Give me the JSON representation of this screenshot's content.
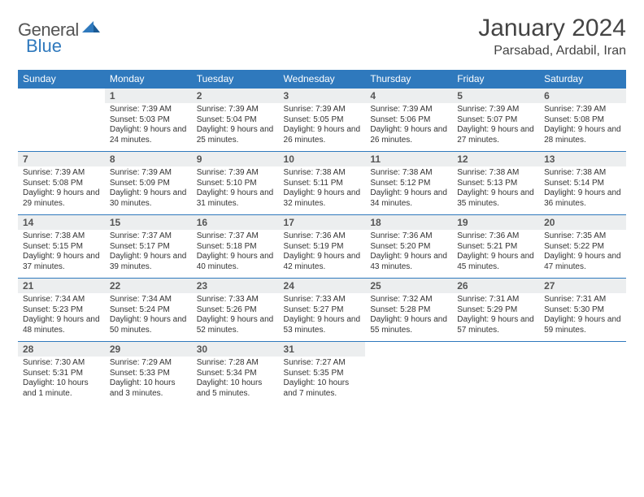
{
  "brand": {
    "name1": "General",
    "name2": "Blue"
  },
  "title": "January 2024",
  "location": "Parsabad, Ardabil, Iran",
  "colors": {
    "accent": "#2f79bd",
    "headerRow": "#eceeef",
    "text": "#333333",
    "bg": "#ffffff"
  },
  "fonts": {
    "title_size": 30,
    "location_size": 16,
    "dayhead_size": 12,
    "body_size": 10
  },
  "dayHeaders": [
    "Sunday",
    "Monday",
    "Tuesday",
    "Wednesday",
    "Thursday",
    "Friday",
    "Saturday"
  ],
  "grid": {
    "rows": 5,
    "cols": 7,
    "first_weekday_offset": 1,
    "days_in_month": 31
  },
  "days": [
    {
      "n": 1,
      "sunrise": "7:39 AM",
      "sunset": "5:03 PM",
      "daylight": "9 hours and 24 minutes."
    },
    {
      "n": 2,
      "sunrise": "7:39 AM",
      "sunset": "5:04 PM",
      "daylight": "9 hours and 25 minutes."
    },
    {
      "n": 3,
      "sunrise": "7:39 AM",
      "sunset": "5:05 PM",
      "daylight": "9 hours and 26 minutes."
    },
    {
      "n": 4,
      "sunrise": "7:39 AM",
      "sunset": "5:06 PM",
      "daylight": "9 hours and 26 minutes."
    },
    {
      "n": 5,
      "sunrise": "7:39 AM",
      "sunset": "5:07 PM",
      "daylight": "9 hours and 27 minutes."
    },
    {
      "n": 6,
      "sunrise": "7:39 AM",
      "sunset": "5:08 PM",
      "daylight": "9 hours and 28 minutes."
    },
    {
      "n": 7,
      "sunrise": "7:39 AM",
      "sunset": "5:08 PM",
      "daylight": "9 hours and 29 minutes."
    },
    {
      "n": 8,
      "sunrise": "7:39 AM",
      "sunset": "5:09 PM",
      "daylight": "9 hours and 30 minutes."
    },
    {
      "n": 9,
      "sunrise": "7:39 AM",
      "sunset": "5:10 PM",
      "daylight": "9 hours and 31 minutes."
    },
    {
      "n": 10,
      "sunrise": "7:38 AM",
      "sunset": "5:11 PM",
      "daylight": "9 hours and 32 minutes."
    },
    {
      "n": 11,
      "sunrise": "7:38 AM",
      "sunset": "5:12 PM",
      "daylight": "9 hours and 34 minutes."
    },
    {
      "n": 12,
      "sunrise": "7:38 AM",
      "sunset": "5:13 PM",
      "daylight": "9 hours and 35 minutes."
    },
    {
      "n": 13,
      "sunrise": "7:38 AM",
      "sunset": "5:14 PM",
      "daylight": "9 hours and 36 minutes."
    },
    {
      "n": 14,
      "sunrise": "7:38 AM",
      "sunset": "5:15 PM",
      "daylight": "9 hours and 37 minutes."
    },
    {
      "n": 15,
      "sunrise": "7:37 AM",
      "sunset": "5:17 PM",
      "daylight": "9 hours and 39 minutes."
    },
    {
      "n": 16,
      "sunrise": "7:37 AM",
      "sunset": "5:18 PM",
      "daylight": "9 hours and 40 minutes."
    },
    {
      "n": 17,
      "sunrise": "7:36 AM",
      "sunset": "5:19 PM",
      "daylight": "9 hours and 42 minutes."
    },
    {
      "n": 18,
      "sunrise": "7:36 AM",
      "sunset": "5:20 PM",
      "daylight": "9 hours and 43 minutes."
    },
    {
      "n": 19,
      "sunrise": "7:36 AM",
      "sunset": "5:21 PM",
      "daylight": "9 hours and 45 minutes."
    },
    {
      "n": 20,
      "sunrise": "7:35 AM",
      "sunset": "5:22 PM",
      "daylight": "9 hours and 47 minutes."
    },
    {
      "n": 21,
      "sunrise": "7:34 AM",
      "sunset": "5:23 PM",
      "daylight": "9 hours and 48 minutes."
    },
    {
      "n": 22,
      "sunrise": "7:34 AM",
      "sunset": "5:24 PM",
      "daylight": "9 hours and 50 minutes."
    },
    {
      "n": 23,
      "sunrise": "7:33 AM",
      "sunset": "5:26 PM",
      "daylight": "9 hours and 52 minutes."
    },
    {
      "n": 24,
      "sunrise": "7:33 AM",
      "sunset": "5:27 PM",
      "daylight": "9 hours and 53 minutes."
    },
    {
      "n": 25,
      "sunrise": "7:32 AM",
      "sunset": "5:28 PM",
      "daylight": "9 hours and 55 minutes."
    },
    {
      "n": 26,
      "sunrise": "7:31 AM",
      "sunset": "5:29 PM",
      "daylight": "9 hours and 57 minutes."
    },
    {
      "n": 27,
      "sunrise": "7:31 AM",
      "sunset": "5:30 PM",
      "daylight": "9 hours and 59 minutes."
    },
    {
      "n": 28,
      "sunrise": "7:30 AM",
      "sunset": "5:31 PM",
      "daylight": "10 hours and 1 minute."
    },
    {
      "n": 29,
      "sunrise": "7:29 AM",
      "sunset": "5:33 PM",
      "daylight": "10 hours and 3 minutes."
    },
    {
      "n": 30,
      "sunrise": "7:28 AM",
      "sunset": "5:34 PM",
      "daylight": "10 hours and 5 minutes."
    },
    {
      "n": 31,
      "sunrise": "7:27 AM",
      "sunset": "5:35 PM",
      "daylight": "10 hours and 7 minutes."
    }
  ],
  "labels": {
    "sunrise": "Sunrise:",
    "sunset": "Sunset:",
    "daylight": "Daylight:"
  }
}
